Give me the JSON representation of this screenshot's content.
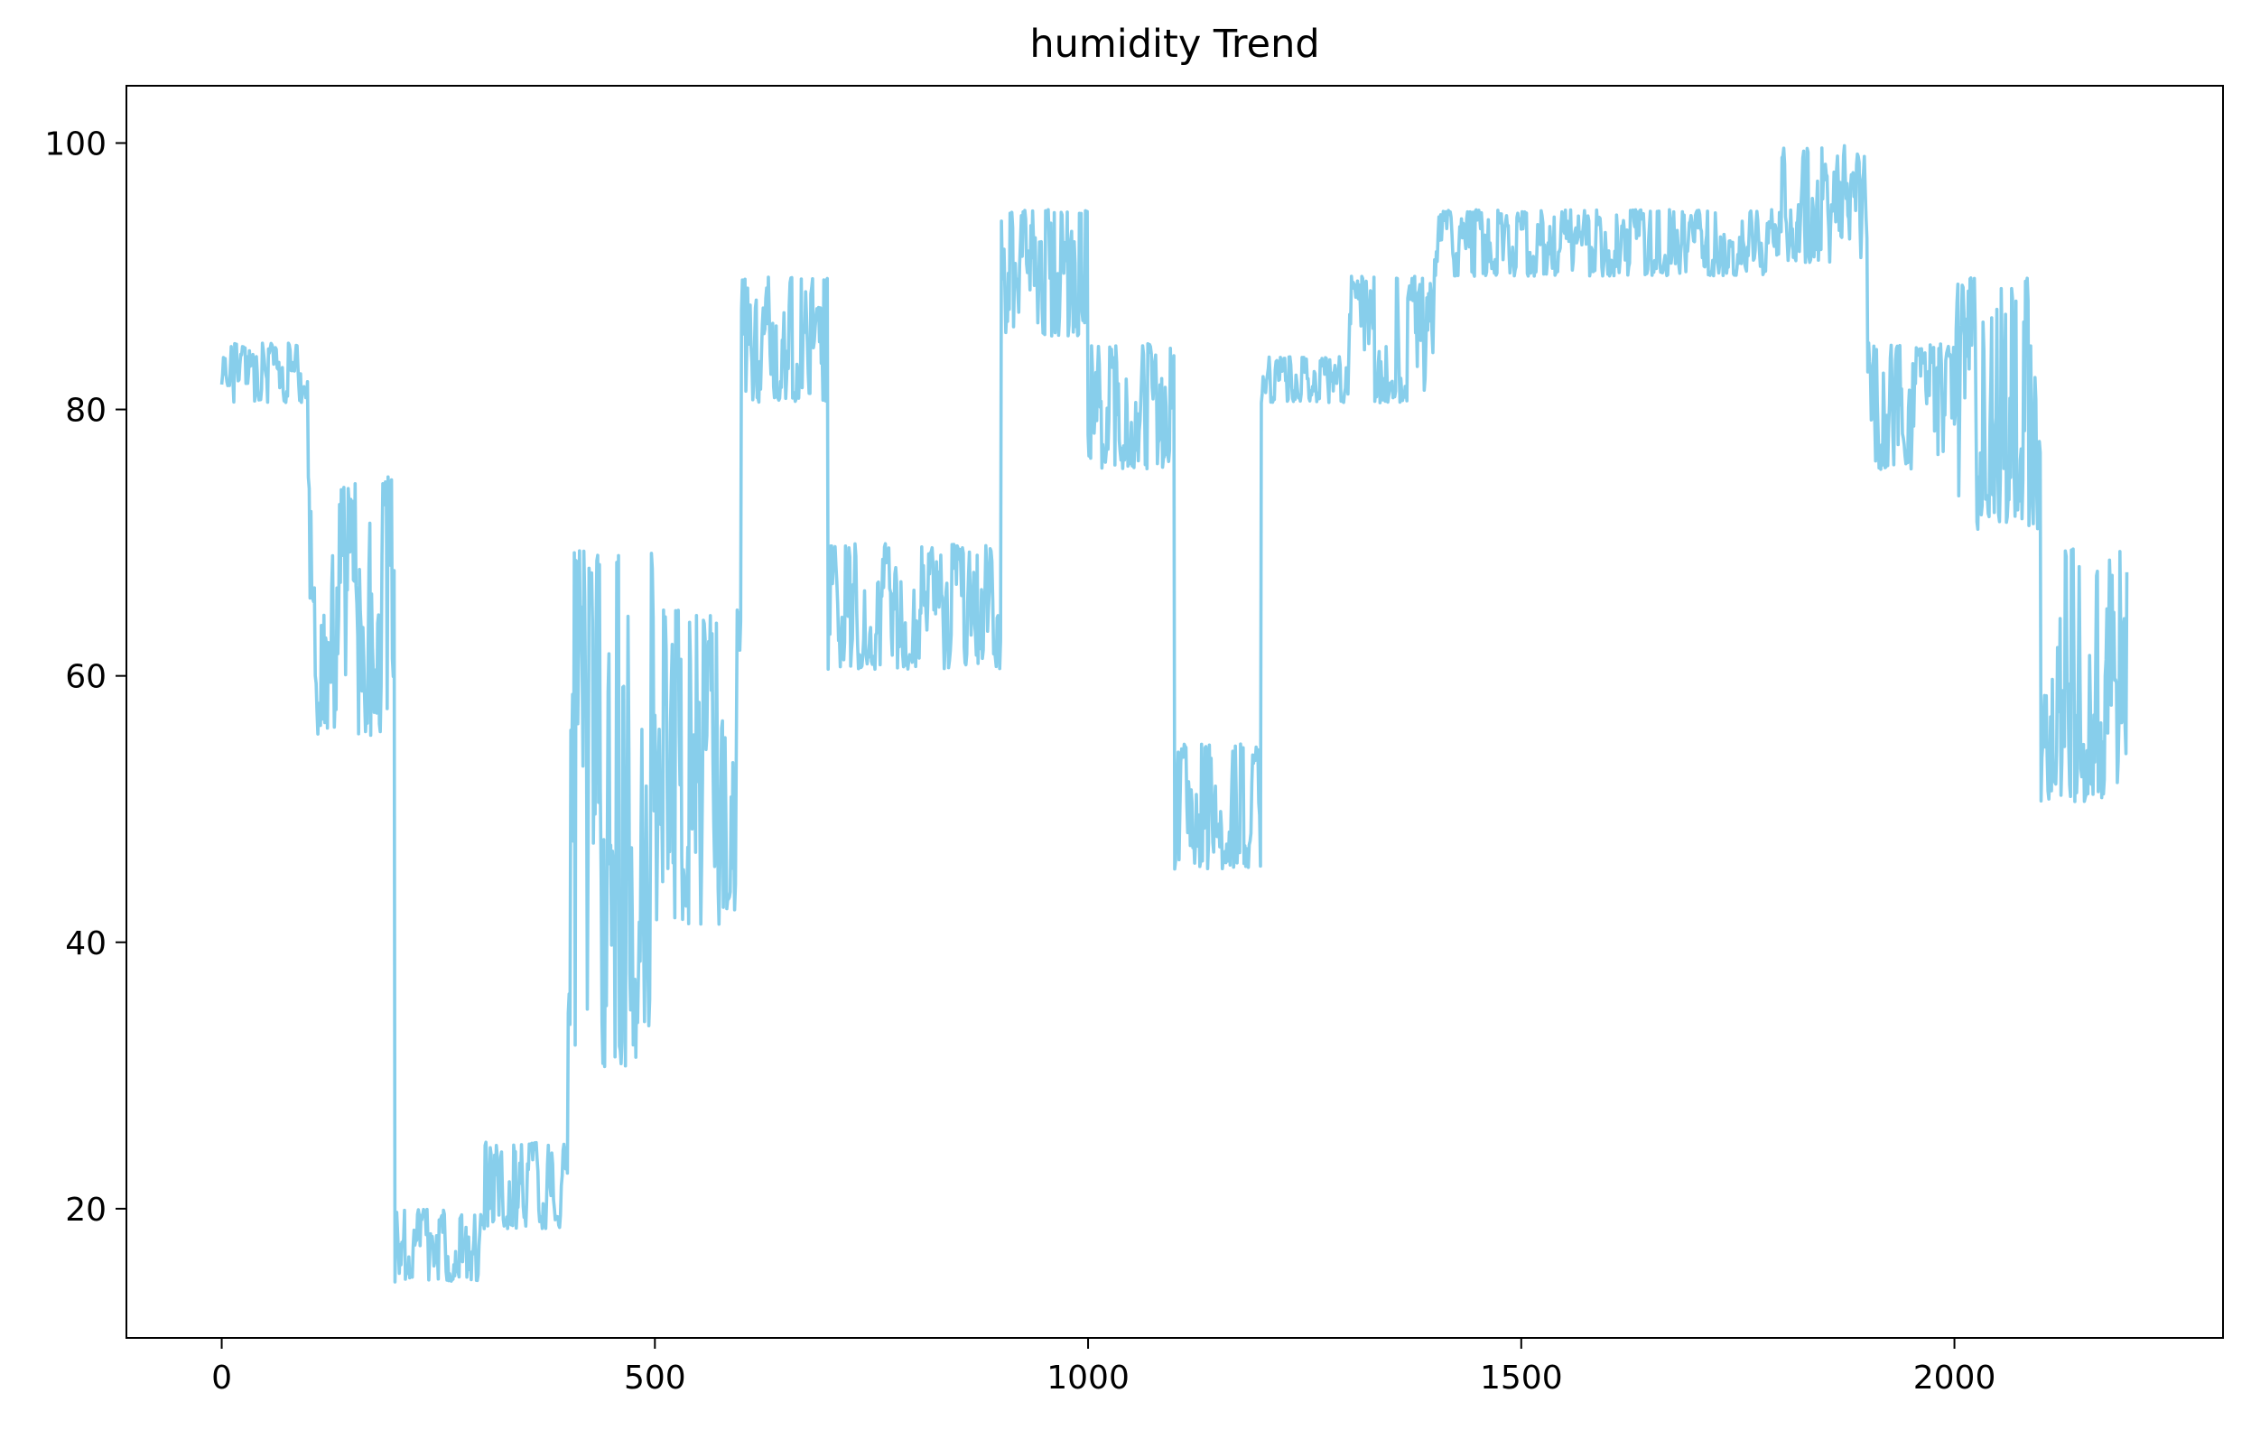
{
  "chart_data": {
    "type": "line",
    "title": "humidity Trend",
    "xlabel": "",
    "ylabel": "",
    "xlim": [
      -110,
      2310
    ],
    "ylim": [
      10.3,
      104.3
    ],
    "x_ticks": [
      0,
      500,
      1000,
      1500,
      2000
    ],
    "y_ticks": [
      20,
      40,
      60,
      80,
      100
    ],
    "grid": false,
    "legend": "none",
    "line_color": "#87CEEB",
    "x_range": [
      0,
      2199
    ],
    "segments": [
      {
        "x_start": 0,
        "x_end": 99,
        "min": 80.5,
        "max": 85.0
      },
      {
        "x_start": 100,
        "x_end": 199,
        "min": 55.5,
        "max": 75.0
      },
      {
        "x_start": 200,
        "x_end": 299,
        "min": 14.5,
        "max": 20.0
      },
      {
        "x_start": 300,
        "x_end": 399,
        "min": 18.5,
        "max": 25.0
      },
      {
        "x_start": 400,
        "x_end": 499,
        "min": 30.5,
        "max": 69.5
      },
      {
        "x_start": 500,
        "x_end": 599,
        "min": 40.5,
        "max": 65.0
      },
      {
        "x_start": 600,
        "x_end": 699,
        "min": 80.5,
        "max": 90.0
      },
      {
        "x_start": 700,
        "x_end": 899,
        "min": 60.5,
        "max": 70.0
      },
      {
        "x_start": 900,
        "x_end": 999,
        "min": 85.5,
        "max": 95.0
      },
      {
        "x_start": 1000,
        "x_end": 1099,
        "min": 75.5,
        "max": 85.0
      },
      {
        "x_start": 1100,
        "x_end": 1199,
        "min": 45.5,
        "max": 55.0
      },
      {
        "x_start": 1200,
        "x_end": 1299,
        "min": 80.5,
        "max": 84.0
      },
      {
        "x_start": 1300,
        "x_end": 1399,
        "min": 80.5,
        "max": 90.0
      },
      {
        "x_start": 1400,
        "x_end": 1799,
        "min": 90.0,
        "max": 95.0
      },
      {
        "x_start": 1800,
        "x_end": 1899,
        "min": 91.0,
        "max": 100.0
      },
      {
        "x_start": 1900,
        "x_end": 1999,
        "min": 75.5,
        "max": 85.0
      },
      {
        "x_start": 2000,
        "x_end": 2099,
        "min": 71.0,
        "max": 90.0
      },
      {
        "x_start": 2100,
        "x_end": 2199,
        "min": 50.5,
        "max": 70.0
      }
    ]
  }
}
